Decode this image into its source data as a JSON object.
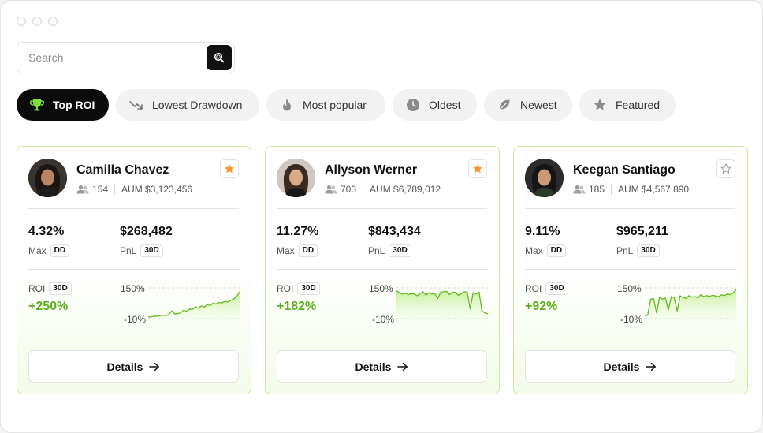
{
  "search": {
    "placeholder": "Search",
    "value": ""
  },
  "tabs": [
    {
      "label": "Top ROI",
      "icon": "trophy-icon",
      "active": true
    },
    {
      "label": "Lowest Drawdown",
      "icon": "trending-down-icon",
      "active": false
    },
    {
      "label": "Most popular",
      "icon": "flame-icon",
      "active": false
    },
    {
      "label": "Oldest",
      "icon": "clock-icon",
      "active": false
    },
    {
      "label": "Newest",
      "icon": "leaf-icon",
      "active": false
    },
    {
      "label": "Featured",
      "icon": "star-icon",
      "active": false
    }
  ],
  "colors": {
    "accent_green": "#5fae1c",
    "card_border": "#c9ea9c",
    "star_orange": "#f5962b",
    "dark": "#0b0b0b"
  },
  "cards": [
    {
      "name": "Camilla Chavez",
      "followers": "154",
      "aum": "AUM $3,123,456",
      "favorited": true,
      "drawdown": "4.32%",
      "drawdown_label": "Max",
      "drawdown_chip": "DD",
      "pnl": "$268,482",
      "pnl_label": "PnL",
      "pnl_chip": "30D",
      "roi_label": "ROI",
      "roi_chip": "30D",
      "roi": "+250%",
      "chart_top": "150%",
      "chart_bottom": "-10%",
      "spark": [
        -2,
        -1,
        3,
        2,
        5,
        8,
        6,
        12,
        30,
        14,
        16,
        20,
        34,
        28,
        40,
        38,
        52,
        44,
        56,
        50,
        62,
        58,
        70,
        66,
        74,
        72,
        80,
        76,
        85,
        92,
        105,
        130
      ],
      "details_label": "Details"
    },
    {
      "name": "Allyson Werner",
      "followers": "703",
      "aum": "AUM $6,789,012",
      "favorited": true,
      "drawdown": "11.27%",
      "drawdown_label": "Max",
      "drawdown_chip": "DD",
      "pnl": "$843,434",
      "pnl_label": "PnL",
      "pnl_chip": "30D",
      "roi_label": "ROI",
      "roi_chip": "30D",
      "roi": "+182%",
      "chart_top": "150%",
      "chart_bottom": "-10%",
      "spark": [
        135,
        125,
        118,
        122,
        115,
        120,
        118,
        110,
        120,
        130,
        112,
        125,
        118,
        120,
        95,
        128,
        130,
        132,
        115,
        128,
        126,
        112,
        120,
        130,
        128,
        40,
        125,
        118,
        128,
        30,
        20,
        15
      ],
      "details_label": "Details"
    },
    {
      "name": "Keegan Santiago",
      "followers": "185",
      "aum": "AUM $4,567,890",
      "favorited": false,
      "drawdown": "9.11%",
      "drawdown_label": "Max",
      "drawdown_chip": "DD",
      "pnl": "$965,211",
      "pnl_label": "PnL",
      "pnl_chip": "30D",
      "roi_label": "ROI",
      "roi_chip": "30D",
      "roi": "+92%",
      "chart_top": "150%",
      "chart_bottom": "-10%",
      "spark": [
        5,
        8,
        90,
        95,
        20,
        100,
        92,
        98,
        35,
        105,
        100,
        30,
        108,
        100,
        95,
        110,
        102,
        105,
        98,
        115,
        104,
        110,
        106,
        112,
        108,
        104,
        114,
        110,
        118,
        115,
        125,
        140
      ],
      "details_label": "Details"
    }
  ]
}
